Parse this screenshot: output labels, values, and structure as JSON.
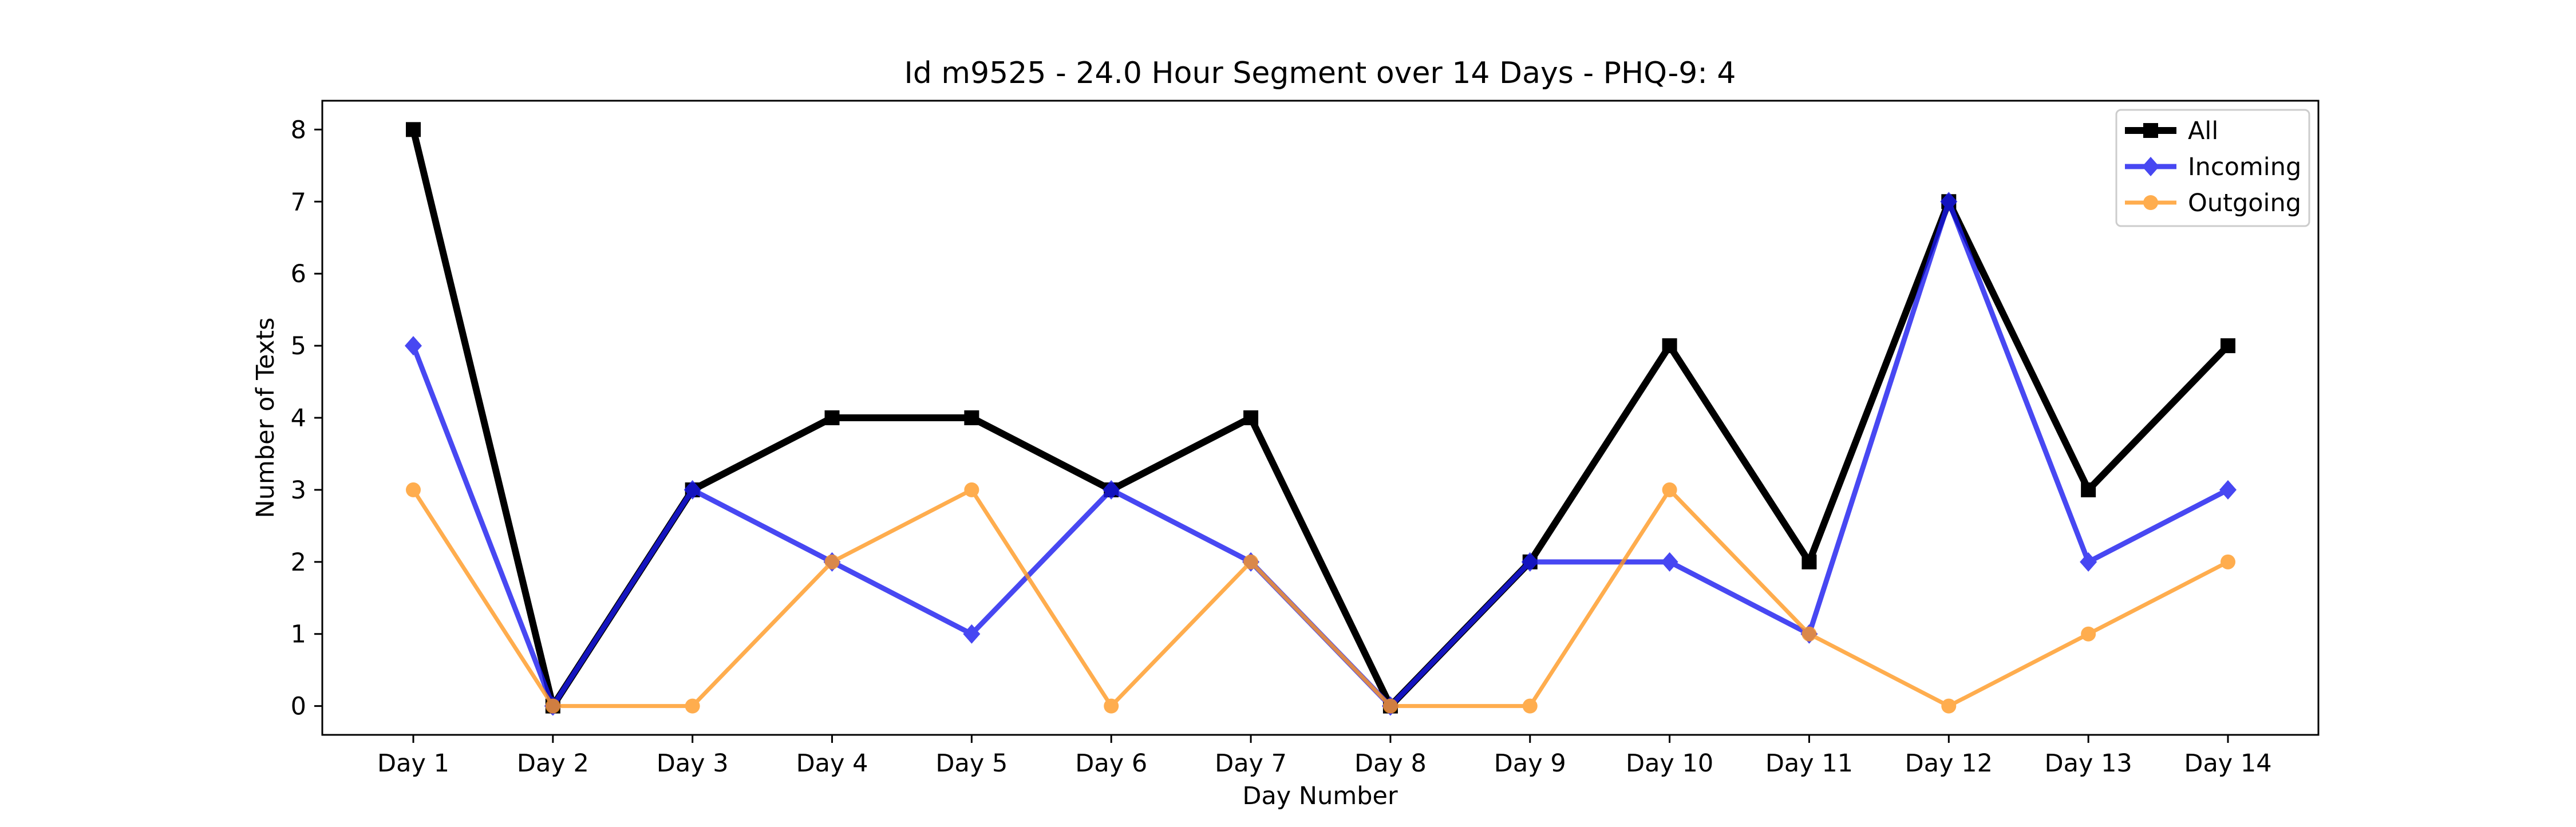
{
  "chart_data": {
    "type": "line",
    "title": "Id m9525 - 24.0 Hour Segment over 14 Days - PHQ-9: 4",
    "xlabel": "Day Number",
    "ylabel": "Number of Texts",
    "categories": [
      "Day 1",
      "Day 2",
      "Day 3",
      "Day 4",
      "Day 5",
      "Day 6",
      "Day 7",
      "Day 8",
      "Day 9",
      "Day 10",
      "Day 11",
      "Day 12",
      "Day 13",
      "Day 14"
    ],
    "ylim": [
      -0.4,
      8.4
    ],
    "yticks": [
      0,
      1,
      2,
      3,
      4,
      5,
      6,
      7,
      8
    ],
    "grid": false,
    "legend_position": "top-right",
    "series": [
      {
        "name": "All",
        "values": [
          8,
          0,
          3,
          4,
          4,
          3,
          4,
          0,
          2,
          5,
          2,
          7,
          3,
          5
        ],
        "color": "#000000",
        "marker": "square"
      },
      {
        "name": "Incoming",
        "values": [
          5,
          0,
          3,
          2,
          1,
          3,
          2,
          0,
          2,
          2,
          1,
          7,
          2,
          3
        ],
        "color": "#1a1aef",
        "marker": "diamond"
      },
      {
        "name": "Outgoing",
        "values": [
          3,
          0,
          0,
          2,
          3,
          0,
          2,
          0,
          0,
          3,
          1,
          0,
          1,
          2
        ],
        "color": "#ff9922",
        "marker": "circle"
      }
    ]
  }
}
